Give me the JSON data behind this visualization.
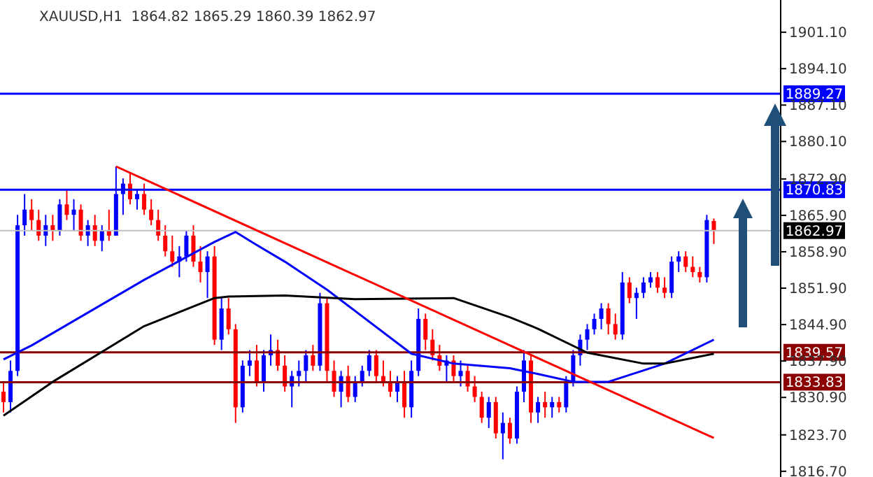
{
  "chart_data": {
    "type": "candlestick",
    "title": "XAUUSD,H1  1864.82 1865.29 1860.39 1862.97",
    "categories": [
      null,
      null,
      null,
      null,
      null,
      null,
      null,
      null,
      null,
      null,
      null,
      null,
      null,
      null,
      null,
      null,
      null,
      null,
      null,
      null,
      null,
      null,
      null,
      null,
      null,
      null,
      null,
      null,
      null,
      null,
      null,
      null,
      null,
      null,
      null,
      null,
      null,
      null,
      null,
      null,
      null,
      null,
      null,
      null,
      null,
      null,
      null,
      null,
      null,
      null,
      null,
      null,
      null,
      null,
      null,
      null,
      null,
      null,
      null,
      null,
      null,
      null,
      null,
      null,
      null,
      null,
      null,
      null,
      null,
      null,
      null,
      null,
      null,
      null,
      null,
      null,
      null,
      null,
      null,
      null,
      null,
      null,
      null,
      null,
      null,
      null,
      null,
      null,
      null,
      null,
      null,
      null,
      null,
      null,
      null,
      null,
      null,
      null,
      null,
      null,
      null,
      null,
      null,
      null,
      null,
      null,
      null,
      null,
      null,
      null,
      null
    ],
    "ohlc": [
      [
        1832,
        1834,
        1828,
        1830
      ],
      [
        1830,
        1838,
        1828,
        1836
      ],
      [
        1836,
        1866,
        1835,
        1864
      ],
      [
        1864,
        1870,
        1862,
        1867
      ],
      [
        1867,
        1869,
        1863,
        1865
      ],
      [
        1865,
        1867,
        1861,
        1862
      ],
      [
        1862,
        1866,
        1860,
        1864
      ],
      [
        1864,
        1866,
        1861,
        1863
      ],
      [
        1863,
        1869,
        1862,
        1868
      ],
      [
        1868,
        1871,
        1865,
        1866
      ],
      [
        1866,
        1869,
        1863,
        1867
      ],
      [
        1867,
        1868,
        1861,
        1862
      ],
      [
        1862,
        1865,
        1860,
        1864
      ],
      [
        1864,
        1866,
        1860,
        1861
      ],
      [
        1861,
        1864,
        1859,
        1863
      ],
      [
        1863,
        1867,
        1861,
        1862
      ],
      [
        1862,
        1875.3,
        1862,
        1870
      ],
      [
        1870,
        1873,
        1866,
        1872
      ],
      [
        1872,
        1874,
        1868,
        1869
      ],
      [
        1869,
        1871,
        1867,
        1870
      ],
      [
        1870,
        1872,
        1866,
        1867
      ],
      [
        1867,
        1869,
        1864,
        1865
      ],
      [
        1865,
        1867,
        1861,
        1862
      ],
      [
        1862,
        1864,
        1858,
        1859
      ],
      [
        1859,
        1862,
        1856,
        1857
      ],
      [
        1857,
        1860,
        1854,
        1858
      ],
      [
        1858,
        1863,
        1857,
        1862
      ],
      [
        1862,
        1864,
        1856,
        1857
      ],
      [
        1857,
        1860,
        1853,
        1855
      ],
      [
        1855,
        1859,
        1850,
        1858
      ],
      [
        1858,
        1860,
        1841,
        1842
      ],
      [
        1842,
        1850,
        1840,
        1848
      ],
      [
        1848,
        1850,
        1843,
        1844
      ],
      [
        1844,
        1845,
        1826,
        1829
      ],
      [
        1829,
        1838,
        1828,
        1837
      ],
      [
        1837,
        1840,
        1835,
        1838
      ],
      [
        1838,
        1841,
        1833,
        1834
      ],
      [
        1834,
        1840,
        1832,
        1839
      ],
      [
        1839,
        1843,
        1837,
        1840
      ],
      [
        1840,
        1842,
        1836,
        1837
      ],
      [
        1837,
        1839,
        1832,
        1833
      ],
      [
        1833,
        1836,
        1829,
        1835
      ],
      [
        1835,
        1838,
        1833,
        1836
      ],
      [
        1836,
        1840,
        1834,
        1839
      ],
      [
        1839,
        1841,
        1836,
        1837
      ],
      [
        1837,
        1851,
        1836,
        1849
      ],
      [
        1849,
        1850,
        1834,
        1836
      ],
      [
        1836,
        1838,
        1831,
        1832
      ],
      [
        1832,
        1836,
        1829,
        1835
      ],
      [
        1835,
        1837,
        1830,
        1831
      ],
      [
        1831,
        1835,
        1830,
        1834
      ],
      [
        1834,
        1837,
        1833,
        1836
      ],
      [
        1836,
        1840,
        1835,
        1839
      ],
      [
        1839,
        1840,
        1834,
        1835
      ],
      [
        1835,
        1838,
        1833,
        1834
      ],
      [
        1834,
        1836,
        1831,
        1832
      ],
      [
        1832,
        1835,
        1830,
        1834
      ],
      [
        1834,
        1836,
        1827,
        1829
      ],
      [
        1829,
        1838,
        1827,
        1836
      ],
      [
        1836,
        1848,
        1835,
        1846
      ],
      [
        1846,
        1847,
        1840,
        1842
      ],
      [
        1842,
        1844,
        1838,
        1839
      ],
      [
        1839,
        1841,
        1836,
        1837
      ],
      [
        1837,
        1839,
        1834,
        1838
      ],
      [
        1838,
        1839,
        1834,
        1835
      ],
      [
        1835,
        1838,
        1833,
        1836
      ],
      [
        1836,
        1837,
        1832,
        1833
      ],
      [
        1833,
        1835,
        1830,
        1831
      ],
      [
        1831,
        1832,
        1826,
        1827
      ],
      [
        1827,
        1831,
        1825,
        1830
      ],
      [
        1830,
        1831,
        1823,
        1824
      ],
      [
        1824,
        1828,
        1819,
        1826
      ],
      [
        1826,
        1827,
        1822,
        1823
      ],
      [
        1823,
        1833,
        1822,
        1832
      ],
      [
        1832,
        1840,
        1830,
        1838
      ],
      [
        1838,
        1839,
        1826,
        1828
      ],
      [
        1828,
        1831,
        1826,
        1830
      ],
      [
        1830,
        1832,
        1827,
        1829
      ],
      [
        1829,
        1831,
        1827,
        1830
      ],
      [
        1830,
        1831,
        1828,
        1829
      ],
      [
        1829,
        1835,
        1828,
        1834
      ],
      [
        1834,
        1840,
        1833,
        1839
      ],
      [
        1839,
        1843,
        1837,
        1842
      ],
      [
        1842,
        1845,
        1840,
        1844
      ],
      [
        1844,
        1847,
        1843,
        1846
      ],
      [
        1846,
        1849,
        1844,
        1848
      ],
      [
        1848,
        1849,
        1843,
        1845
      ],
      [
        1845,
        1847,
        1842,
        1843
      ],
      [
        1843,
        1855,
        1842,
        1853
      ],
      [
        1853,
        1854,
        1849,
        1850
      ],
      [
        1850,
        1852,
        1846,
        1851
      ],
      [
        1851,
        1854,
        1850,
        1853
      ],
      [
        1853,
        1855,
        1852,
        1854
      ],
      [
        1854,
        1855,
        1851,
        1852
      ],
      [
        1852,
        1854,
        1850,
        1851
      ],
      [
        1851,
        1858,
        1850,
        1857
      ],
      [
        1857,
        1859,
        1855,
        1858
      ],
      [
        1858,
        1859,
        1855,
        1856
      ],
      [
        1856,
        1858,
        1854,
        1855
      ],
      [
        1855,
        1856,
        1853,
        1854
      ],
      [
        1854,
        1866,
        1853,
        1865
      ],
      [
        1864.82,
        1865.29,
        1860.39,
        1862.97
      ],
      null,
      null,
      null,
      null,
      null,
      null,
      null,
      null,
      null
    ],
    "series": [
      {
        "type": "line",
        "color": "#0000ff",
        "values": [
          1838.2,
          null,
          null,
          null,
          1840.9,
          null,
          null,
          null,
          null,
          null,
          null,
          null,
          null,
          null,
          null,
          null,
          null,
          null,
          null,
          null,
          1853.5,
          null,
          null,
          null,
          null,
          null,
          null,
          null,
          null,
          null,
          1860.8,
          null,
          null,
          1862.7,
          null,
          null,
          1860.2,
          null,
          null,
          null,
          1857.0,
          null,
          null,
          null,
          null,
          null,
          1851.6,
          null,
          null,
          null,
          null,
          null,
          null,
          null,
          null,
          null,
          null,
          null,
          1839.3,
          null,
          null,
          null,
          null,
          null,
          1837.4,
          null,
          null,
          null,
          null,
          null,
          null,
          null,
          1836.5,
          null,
          null,
          null,
          1835.4,
          null,
          null,
          null,
          null,
          1833.9,
          null,
          null,
          null,
          null,
          1833.9,
          null,
          null,
          null,
          null,
          null,
          null,
          null,
          1837.4,
          null,
          null,
          null,
          null,
          null,
          null,
          1842.0,
          null,
          null,
          null,
          null,
          null,
          null,
          null,
          null,
          null
        ]
      },
      {
        "type": "line",
        "color": "#000000",
        "values": [
          1827.4,
          null,
          null,
          null,
          null,
          null,
          null,
          1833.9,
          null,
          null,
          null,
          null,
          null,
          null,
          null,
          null,
          null,
          null,
          null,
          null,
          1844.6,
          null,
          null,
          null,
          null,
          null,
          null,
          null,
          null,
          null,
          1850.0,
          null,
          1850.3,
          null,
          null,
          null,
          null,
          null,
          null,
          null,
          1850.5,
          null,
          null,
          null,
          null,
          null,
          null,
          null,
          null,
          null,
          1849.8,
          null,
          null,
          null,
          null,
          null,
          null,
          null,
          null,
          null,
          null,
          null,
          null,
          null,
          1850.0,
          null,
          null,
          null,
          null,
          null,
          null,
          null,
          1846.3,
          null,
          null,
          null,
          1844.1,
          null,
          null,
          null,
          null,
          null,
          null,
          1839.5,
          null,
          null,
          null,
          null,
          null,
          null,
          null,
          1837.4,
          null,
          null,
          1837.4,
          null,
          null,
          null,
          null,
          null,
          null,
          1839.3,
          null,
          null,
          null,
          null,
          null,
          null,
          null,
          null,
          null
        ]
      },
      {
        "type": "line",
        "color": "#ff0000",
        "values": [
          null,
          null,
          null,
          null,
          null,
          null,
          null,
          null,
          null,
          null,
          null,
          null,
          null,
          null,
          null,
          null,
          1875.3,
          null,
          null,
          null,
          null,
          null,
          null,
          null,
          null,
          null,
          null,
          null,
          null,
          null,
          null,
          null,
          null,
          null,
          null,
          null,
          null,
          null,
          null,
          null,
          null,
          null,
          null,
          null,
          null,
          null,
          null,
          null,
          null,
          null,
          null,
          null,
          null,
          null,
          null,
          null,
          null,
          null,
          null,
          null,
          null,
          null,
          null,
          null,
          null,
          null,
          null,
          null,
          null,
          null,
          null,
          null,
          null,
          null,
          null,
          null,
          null,
          null,
          null,
          null,
          null,
          null,
          null,
          null,
          null,
          null,
          null,
          null,
          null,
          null,
          null,
          null,
          null,
          null,
          null,
          null,
          null,
          null,
          null,
          null,
          null,
          1823.1,
          null,
          null,
          null,
          null,
          null,
          null,
          null,
          null,
          null
        ]
      }
    ],
    "ylim": [
      1815.6,
      1907.3
    ],
    "yticks": [
      {
        "value": 1816.7,
        "label": "1816.70"
      },
      {
        "value": 1823.7,
        "label": "1823.70"
      },
      {
        "value": 1830.9,
        "label": "1830.90"
      },
      {
        "value": 1837.9,
        "label": "1837.90"
      },
      {
        "value": 1844.9,
        "label": "1844.90"
      },
      {
        "value": 1851.9,
        "label": "1851.90"
      },
      {
        "value": 1858.9,
        "label": "1858.90"
      },
      {
        "value": 1865.9,
        "label": "1865.90"
      },
      {
        "value": 1872.9,
        "label": "1872.90"
      },
      {
        "value": 1880.1,
        "label": "1880.10"
      },
      {
        "value": 1887.1,
        "label": "1887.10"
      },
      {
        "value": 1894.1,
        "label": "1894.10"
      },
      {
        "value": 1901.1,
        "label": "1901.10"
      }
    ],
    "ref_lines": [
      {
        "axis": "y",
        "value": 1889.27,
        "label": "1889.27",
        "color": "#0000ff"
      },
      {
        "axis": "y",
        "value": 1870.83,
        "label": "1870.83",
        "color": "#0000ff"
      },
      {
        "axis": "y",
        "value": 1862.97,
        "label": "1862.97",
        "color": "#c0c0c0"
      },
      {
        "axis": "y",
        "value": 1839.57,
        "label": "1839.57",
        "color": "#8b0000"
      },
      {
        "axis": "y",
        "value": 1833.83,
        "label": "1833.83",
        "color": "#8b0000"
      }
    ],
    "tick_labels": "y",
    "grid": false,
    "legend": false
  }
}
